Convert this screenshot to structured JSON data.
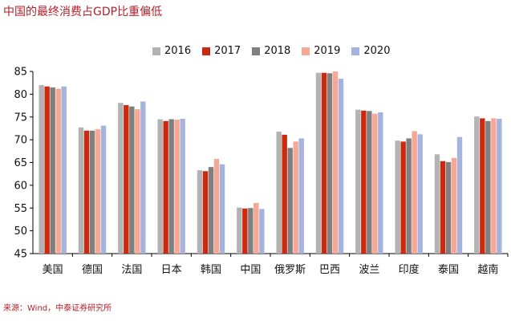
{
  "title": "中国的最终消费占GDP比重偏低",
  "source": "来源：Wind，中泰证券研究所",
  "chart_data": {
    "type": "bar",
    "categories": [
      "美国",
      "德国",
      "法国",
      "日本",
      "韩国",
      "中国",
      "俄罗斯",
      "巴西",
      "波兰",
      "印度",
      "泰国",
      "越南"
    ],
    "series": [
      {
        "name": "2016",
        "color": "#b3b3b3",
        "values": [
          82.0,
          72.7,
          78.1,
          74.5,
          63.3,
          55.1,
          71.8,
          84.7,
          76.6,
          69.8,
          66.8,
          75.1
        ]
      },
      {
        "name": "2017",
        "color": "#cc2a10",
        "values": [
          81.7,
          72.0,
          77.6,
          74.1,
          63.1,
          54.9,
          71.1,
          84.7,
          76.4,
          69.6,
          65.3,
          74.7
        ]
      },
      {
        "name": "2018",
        "color": "#7f7f7f",
        "values": [
          81.5,
          72.0,
          77.3,
          74.5,
          64.0,
          55.0,
          68.2,
          84.6,
          76.3,
          70.3,
          65.1,
          74.1
        ]
      },
      {
        "name": "2019",
        "color": "#f7a894",
        "values": [
          81.2,
          72.3,
          76.7,
          74.4,
          65.8,
          56.1,
          69.6,
          85.0,
          75.7,
          71.9,
          66.0,
          74.7
        ]
      },
      {
        "name": "2020",
        "color": "#a6b3dc",
        "values": [
          81.7,
          73.1,
          78.4,
          74.6,
          64.6,
          54.8,
          70.3,
          83.4,
          76.0,
          71.2,
          70.6,
          74.6
        ]
      }
    ],
    "ylim": [
      45,
      85
    ],
    "yticks": [
      45,
      50,
      55,
      60,
      65,
      70,
      75,
      80,
      85
    ],
    "grid": false,
    "legend": "top-center"
  }
}
